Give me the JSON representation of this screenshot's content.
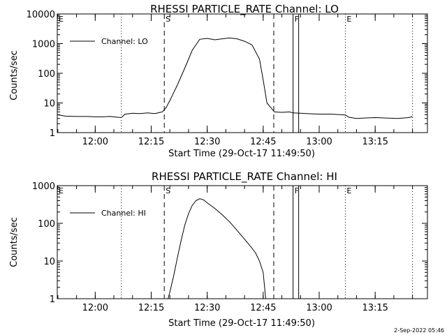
{
  "footer_timestamp": "2-Sep-2022 05:46",
  "chart_data": [
    {
      "type": "line",
      "title": "RHESSI PARTICLE_RATE Channel: LO",
      "xlabel": "Start Time (29-Oct-17 11:49:50)",
      "ylabel": "Counts/sec",
      "y_scale": "log",
      "ylim": [
        1,
        10000
      ],
      "xlim": [
        "11:49:50",
        "13:29:00"
      ],
      "x_ticks": [
        "12:00",
        "12:15",
        "12:30",
        "12:45",
        "13:00",
        "13:15"
      ],
      "y_ticks": [
        "1",
        "10",
        "100",
        "1000",
        "10000"
      ],
      "legend": {
        "position": "top-left",
        "entries": [
          "Channel: LO"
        ]
      },
      "markers": [
        {
          "label": "E",
          "time": "11:49:50",
          "style": "dotted"
        },
        {
          "label": "",
          "time": "12:07:00",
          "style": "dotted"
        },
        {
          "label": "S",
          "time": "12:18:30",
          "style": "dashed"
        },
        {
          "label": "",
          "time": "12:47:50",
          "style": "dashed"
        },
        {
          "label": "F",
          "time": "12:53:00",
          "style": "solid"
        },
        {
          "label": "",
          "time": "12:54:30",
          "style": "solid"
        },
        {
          "label": "E",
          "time": "13:07:00",
          "style": "dotted"
        },
        {
          "label": "",
          "time": "13:25:00",
          "style": "dotted"
        }
      ],
      "series": [
        {
          "x": [
            "11:49:50",
            "11:52:00",
            "11:55:00",
            "11:58:00",
            "12:00:00",
            "12:02:00",
            "12:04:00",
            "12:06:00",
            "12:07:00",
            "12:08:00",
            "12:10:00",
            "12:12:00",
            "12:14:00",
            "12:16:00",
            "12:18:00",
            "12:19:00",
            "12:20:00",
            "12:22:00",
            "12:24:00",
            "12:26:00",
            "12:28:00",
            "12:30:00",
            "12:32:00",
            "12:34:00",
            "12:36:00",
            "12:38:00",
            "12:40:00",
            "12:42:00",
            "12:44:00",
            "12:45:00",
            "12:46:00",
            "12:48:00",
            "12:50:00",
            "12:52:00",
            "12:53:00",
            "12:55:00",
            "12:58:00",
            "13:00:00",
            "13:03:00",
            "13:06:00",
            "13:07:00",
            "13:08:00",
            "13:10:00",
            "13:12:00",
            "13:15:00",
            "13:18:00",
            "13:21:00",
            "13:24:00",
            "13:25:00"
          ],
          "y": [
            4,
            3.6,
            3.5,
            3.5,
            3.4,
            3.4,
            3.5,
            3.3,
            3.2,
            4.2,
            4.5,
            4.4,
            4.6,
            4.4,
            5,
            7,
            12,
            40,
            150,
            600,
            1400,
            1500,
            1350,
            1450,
            1550,
            1450,
            1200,
            900,
            300,
            60,
            10,
            5,
            4.8,
            5,
            4.6,
            4.5,
            4.3,
            4.2,
            4.2,
            4,
            3.9,
            3.3,
            3,
            3.1,
            3.2,
            3.1,
            3,
            3.2,
            3.5
          ]
        }
      ]
    },
    {
      "type": "line",
      "title": "RHESSI PARTICLE_RATE Channel: HI",
      "xlabel": "Start Time (29-Oct-17 11:49:50)",
      "ylabel": "Counts/sec",
      "y_scale": "log",
      "ylim": [
        1,
        1000
      ],
      "xlim": [
        "11:49:50",
        "13:29:00"
      ],
      "x_ticks": [
        "12:00",
        "12:15",
        "12:30",
        "12:45",
        "13:00",
        "13:15"
      ],
      "y_ticks": [
        "1",
        "10",
        "100",
        "1000"
      ],
      "legend": {
        "position": "top-left",
        "entries": [
          "Channel: HI"
        ]
      },
      "markers": [
        {
          "label": "E",
          "time": "11:49:50",
          "style": "dotted"
        },
        {
          "label": "",
          "time": "12:07:00",
          "style": "dotted"
        },
        {
          "label": "S",
          "time": "12:18:30",
          "style": "dashed"
        },
        {
          "label": "",
          "time": "12:47:50",
          "style": "dashed"
        },
        {
          "label": "F",
          "time": "12:53:00",
          "style": "solid"
        },
        {
          "label": "",
          "time": "12:54:30",
          "style": "solid"
        },
        {
          "label": "E",
          "time": "13:07:00",
          "style": "dotted"
        },
        {
          "label": "",
          "time": "13:25:00",
          "style": "dotted"
        }
      ],
      "series": [
        {
          "x": [
            "12:19:30",
            "12:20:00",
            "12:21:00",
            "12:22:00",
            "12:23:00",
            "12:24:00",
            "12:25:00",
            "12:26:00",
            "12:27:00",
            "12:28:00",
            "12:29:00",
            "12:30:00",
            "12:32:00",
            "12:34:00",
            "12:36:00",
            "12:38:00",
            "12:40:00",
            "12:42:00",
            "12:43:00",
            "12:44:00",
            "12:45:00",
            "12:45:40"
          ],
          "y": [
            1,
            1.5,
            4,
            12,
            35,
            90,
            180,
            300,
            400,
            450,
            420,
            350,
            250,
            170,
            110,
            65,
            38,
            22,
            16,
            10,
            5,
            1
          ]
        }
      ]
    }
  ]
}
